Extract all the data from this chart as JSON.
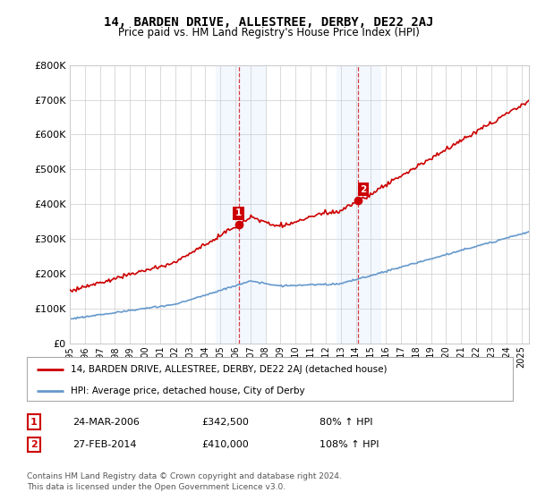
{
  "title": "14, BARDEN DRIVE, ALLESTREE, DERBY, DE22 2AJ",
  "subtitle": "Price paid vs. HM Land Registry's House Price Index (HPI)",
  "legend_house": "14, BARDEN DRIVE, ALLESTREE, DERBY, DE22 2AJ (detached house)",
  "legend_hpi": "HPI: Average price, detached house, City of Derby",
  "sale1_date": "24-MAR-2006",
  "sale1_price": 342500,
  "sale1_pct": "80% ↑ HPI",
  "sale2_date": "27-FEB-2014",
  "sale2_price": 410000,
  "sale2_pct": "108% ↑ HPI",
  "footnote": "Contains HM Land Registry data © Crown copyright and database right 2024.\nThis data is licensed under the Open Government Licence v3.0.",
  "house_color": "#cc0000",
  "hpi_color": "#6699cc",
  "shade_color": "#cce0ff",
  "vline_color": "#cc0000",
  "marker_box_color": "#cc0000",
  "ylim": [
    0,
    800000
  ],
  "yticks": [
    0,
    100000,
    200000,
    300000,
    400000,
    500000,
    600000,
    700000,
    800000
  ],
  "xlim_start": 1995.0,
  "xlim_end": 2025.5,
  "sale1_x": 2006.22,
  "sale2_x": 2014.15,
  "bg_color": "#ffffff",
  "grid_color": "#cccccc"
}
